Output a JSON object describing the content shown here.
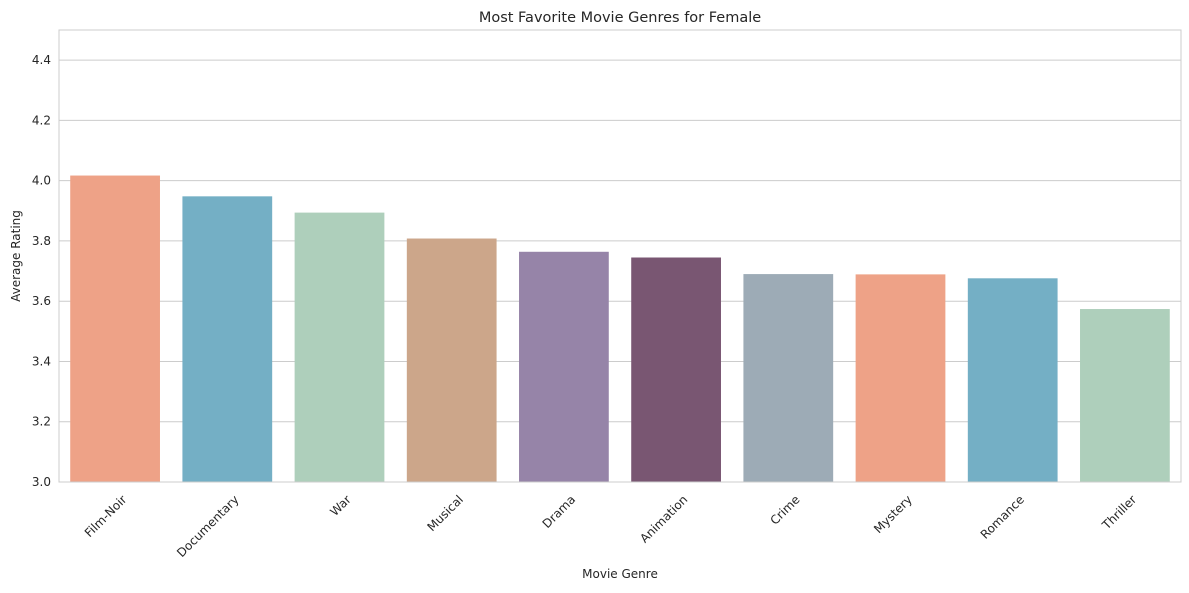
{
  "chart_data": {
    "type": "bar",
    "title": "Most Favorite Movie Genres for Female",
    "xlabel": "Movie Genre",
    "ylabel": "Average Rating",
    "categories": [
      "Film-Noir",
      "Documentary",
      "War",
      "Musical",
      "Drama",
      "Animation",
      "Crime",
      "Mystery",
      "Romance",
      "Thriller"
    ],
    "values": [
      4.017,
      3.948,
      3.894,
      3.808,
      3.764,
      3.745,
      3.69,
      3.689,
      3.676,
      3.574
    ],
    "colors": [
      "#EEA287",
      "#74AFC5",
      "#AECFBB",
      "#CCA68A",
      "#9684A8",
      "#795672",
      "#9DABB6",
      "#EEA287",
      "#74AFC5",
      "#AECFBB"
    ],
    "ylim": [
      3.0,
      4.5
    ],
    "yticks": [
      "3.0",
      "3.2",
      "3.4",
      "3.6",
      "3.8",
      "4.0",
      "4.2",
      "4.4"
    ],
    "grid": true,
    "xtick_rotation_deg": 45
  }
}
